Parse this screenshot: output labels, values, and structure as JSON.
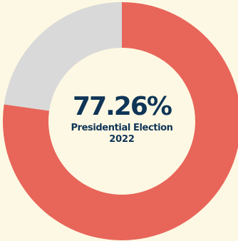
{
  "chart_data": {
    "type": "pie",
    "style": "donut",
    "segments": [
      {
        "value": 77.26,
        "color": "#e8655a"
      },
      {
        "value": 22.74,
        "color": "#d9d9d9"
      }
    ],
    "center_value": "77.26%",
    "center_caption_line1": "Presidential Election",
    "center_caption_line2": "2022",
    "background": "#fdf8e3",
    "text_color": "#0f3557"
  }
}
